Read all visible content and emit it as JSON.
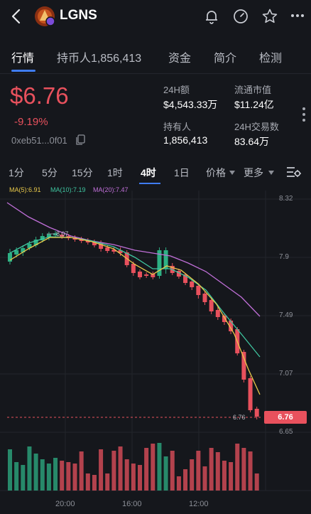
{
  "header": {
    "back_icon": "chevron-left-icon",
    "token_name": "LGNS",
    "icons": [
      "bell-icon",
      "gauge-icon",
      "star-icon",
      "more-dots-icon"
    ]
  },
  "tabs": [
    {
      "label": "行情",
      "active": true
    },
    {
      "label": "持币人1,856,413",
      "active": false
    },
    {
      "label": "资金",
      "active": false
    },
    {
      "label": "简介",
      "active": false
    },
    {
      "label": "检测",
      "active": false
    }
  ],
  "price": {
    "current": "$6.76",
    "change": "-9.19%",
    "address": "0xeb51...0f01"
  },
  "stats": {
    "vol_label": "24H额",
    "vol_value": "$4,543.33万",
    "cap_label": "流通市值",
    "cap_value": "$11.24亿",
    "holders_label": "持有人",
    "holders_value": "1,856,413",
    "tx_label": "24H交易数",
    "tx_value": "83.64万"
  },
  "timeframes": {
    "items": [
      "1分",
      "5分",
      "15分",
      "1时",
      "4时",
      "1日"
    ],
    "active": "4时",
    "price_menu": "价格",
    "more_menu": "更多"
  },
  "indicators": {
    "ma5": "MA(5):6.91",
    "ma10": "MA(10):7.19",
    "ma20": "MA(20):7.47"
  },
  "chart": {
    "price_axis": [
      "8.32",
      "7.9",
      "7.49",
      "7.07",
      "6.65"
    ],
    "high_marker": "8.07",
    "low_marker": "6.76",
    "current_tag": "6.76",
    "time_axis": [
      "20:00",
      "16:00",
      "12:00"
    ]
  },
  "colors": {
    "up": "#2db084",
    "down": "#e8515d",
    "ma5": "#e9c94a",
    "ma10": "#3fc6a0",
    "ma20": "#c06fd8",
    "accent": "#3f7cf0"
  }
}
